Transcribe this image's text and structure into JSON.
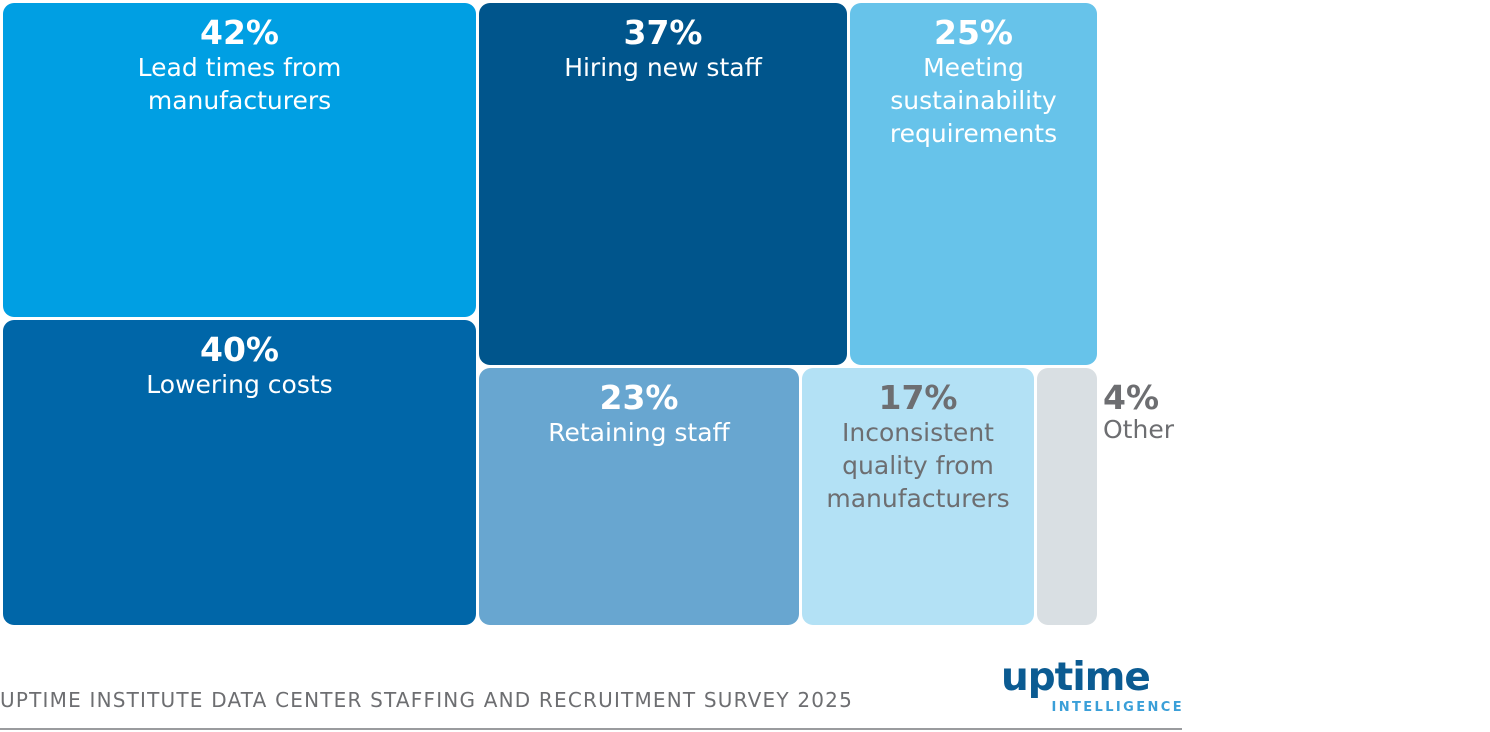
{
  "chart_data": {
    "type": "treemap",
    "title": "",
    "items": [
      {
        "label": "Lead times from\nmanufacturers",
        "value": 42,
        "value_label": "42%",
        "color": "#009fe3",
        "text_color": "#ffffff"
      },
      {
        "label": "Lowering costs",
        "value": 40,
        "value_label": "40%",
        "color": "#0066a8",
        "text_color": "#ffffff"
      },
      {
        "label": "Hiring new staff",
        "value": 37,
        "value_label": "37%",
        "color": "#00558c",
        "text_color": "#ffffff"
      },
      {
        "label": "Meeting\nsustainability\nrequirements",
        "value": 25,
        "value_label": "25%",
        "color": "#67c3ea",
        "text_color": "#ffffff"
      },
      {
        "label": "Retaining staff",
        "value": 23,
        "value_label": "23%",
        "color": "#68a6d0",
        "text_color": "#ffffff"
      },
      {
        "label": "Inconsistent\nquality from\nmanufacturers",
        "value": 17,
        "value_label": "17%",
        "color": "#b3e1f5",
        "text_color": "#6d6e71"
      },
      {
        "label": "Other",
        "value": 4,
        "value_label": "4%",
        "color": "#d9dfe3",
        "text_color": "#6d6e71",
        "label_outside": true
      }
    ]
  },
  "footer": {
    "source": "UPTIME INSTITUTE DATA CENTER STAFFING AND RECRUITMENT SURVEY 2025",
    "brand_name": "uptime",
    "brand_sub": "INTELLIGENCE"
  }
}
